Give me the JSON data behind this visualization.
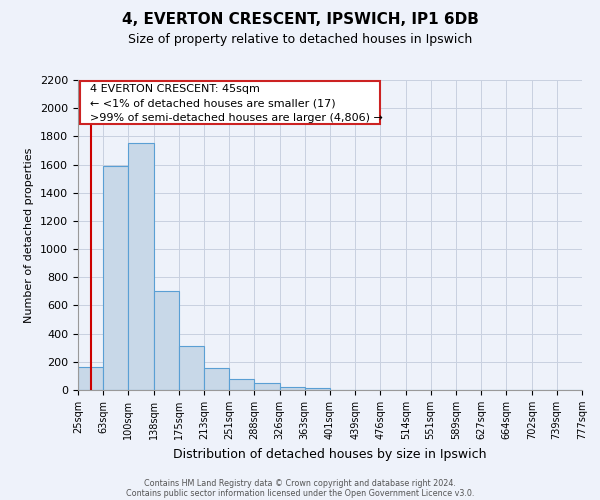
{
  "title": "4, EVERTON CRESCENT, IPSWICH, IP1 6DB",
  "subtitle": "Size of property relative to detached houses in Ipswich",
  "xlabel": "Distribution of detached houses by size in Ipswich",
  "ylabel": "Number of detached properties",
  "bar_edges": [
    25,
    63,
    100,
    138,
    175,
    213,
    251,
    288,
    326,
    363,
    401,
    439,
    476,
    514,
    551,
    589,
    627,
    664,
    702,
    739,
    777
  ],
  "bar_heights": [
    160,
    1590,
    1750,
    700,
    315,
    155,
    80,
    50,
    20,
    15,
    0,
    0,
    0,
    0,
    0,
    0,
    0,
    0,
    0,
    0
  ],
  "bar_color": "#c8d8e8",
  "bar_edge_color": "#5a9fd4",
  "property_line_x": 45,
  "property_line_color": "#cc0000",
  "ylim": [
    0,
    2200
  ],
  "yticks": [
    0,
    200,
    400,
    600,
    800,
    1000,
    1200,
    1400,
    1600,
    1800,
    2000,
    2200
  ],
  "annotation_line1": "4 EVERTON CRESCENT: 45sqm",
  "annotation_line2": "← <1% of detached houses are smaller (17)",
  "annotation_line3": ">99% of semi-detached houses are larger (4,806) →",
  "footer_line1": "Contains HM Land Registry data © Crown copyright and database right 2024.",
  "footer_line2": "Contains public sector information licensed under the Open Government Licence v3.0.",
  "grid_color": "#c8d0e0",
  "background_color": "#eef2fa"
}
